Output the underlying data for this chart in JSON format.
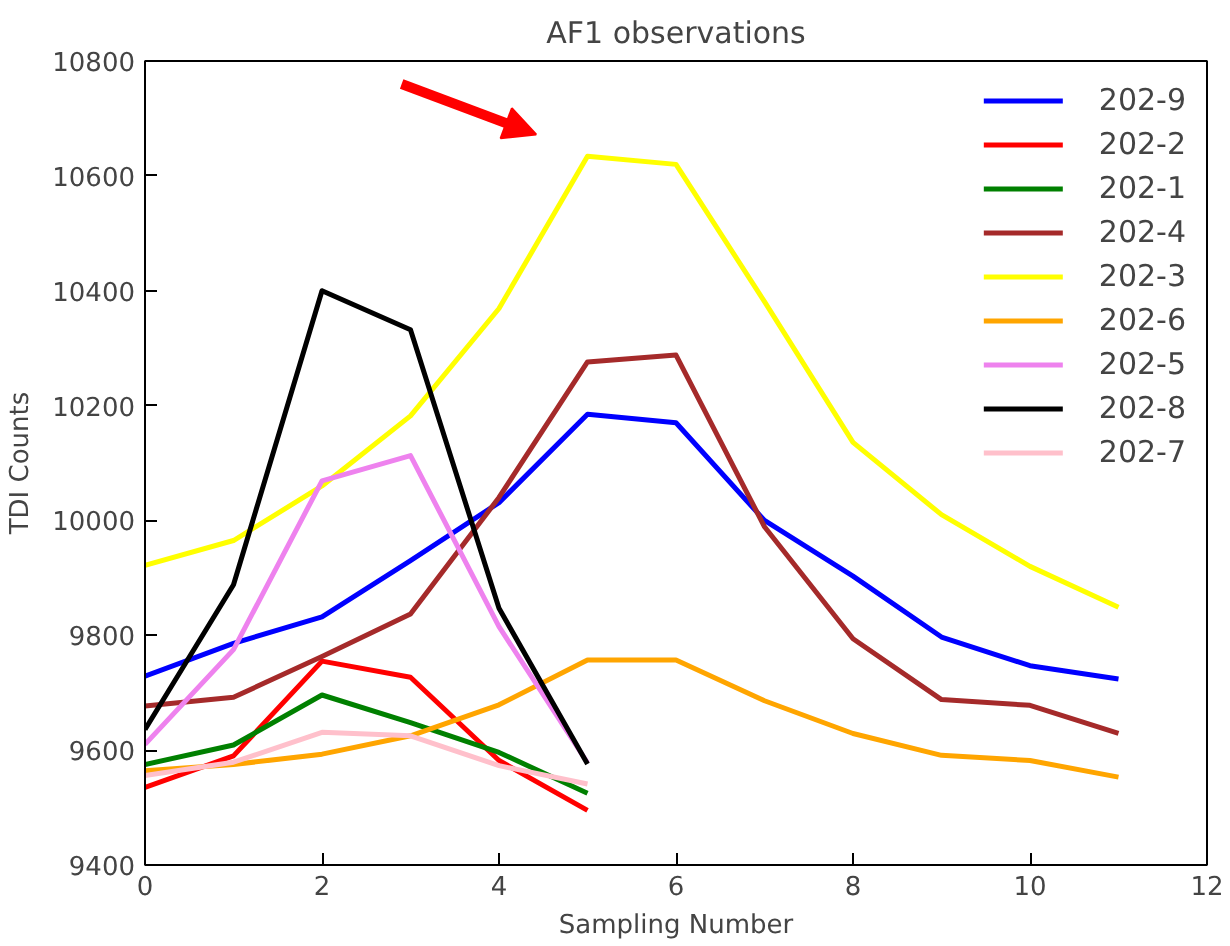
{
  "chart_data": {
    "type": "line",
    "title": "AF1 observations",
    "xlabel": "Sampling Number",
    "ylabel": "TDI Counts",
    "xlim": [
      0,
      12
    ],
    "ylim": [
      9400,
      10800
    ],
    "xticks": [
      0,
      2,
      4,
      6,
      8,
      10,
      12
    ],
    "yticks": [
      9400,
      9600,
      9800,
      10000,
      10200,
      10400,
      10600,
      10800
    ],
    "grid": false,
    "legend": "top right",
    "line_style": "solid",
    "series": [
      {
        "name": "202-9",
        "color": "#0000ff",
        "x": [
          0,
          1,
          2,
          3,
          4,
          5,
          6,
          7,
          8,
          9,
          10,
          11
        ],
        "values": [
          9729,
          9786,
          9832,
          9930,
          10031,
          10185,
          10170,
          10000,
          9903,
          9797,
          9747,
          9724
        ]
      },
      {
        "name": "202-2",
        "color": "#ff0000",
        "x": [
          0,
          1,
          2,
          3,
          4,
          5
        ],
        "values": [
          9535,
          9590,
          9755,
          9727,
          9582,
          9495
        ]
      },
      {
        "name": "202-1",
        "color": "#008000",
        "x": [
          0,
          1,
          2,
          3,
          4,
          5
        ],
        "values": [
          9575,
          9609,
          9696,
          9648,
          9596,
          9525
        ]
      },
      {
        "name": "202-4",
        "color": "#a52a2a",
        "x": [
          0,
          1,
          2,
          3,
          4,
          5,
          6,
          7,
          8,
          9,
          10,
          11
        ],
        "values": [
          9677,
          9692,
          9763,
          9837,
          10040,
          10276,
          10288,
          9989,
          9794,
          9688,
          9678,
          9629
        ]
      },
      {
        "name": "202-3",
        "color": "#ffff00",
        "x": [
          0,
          1,
          2,
          3,
          4,
          5,
          6,
          7,
          8,
          9,
          10,
          11
        ],
        "values": [
          9922,
          9965,
          10060,
          10182,
          10369,
          10634,
          10620,
          10381,
          10136,
          10010,
          9920,
          9849
        ]
      },
      {
        "name": "202-6",
        "color": "#ffa500",
        "x": [
          0,
          1,
          2,
          3,
          4,
          5,
          6,
          7,
          8,
          9,
          10,
          11
        ],
        "values": [
          9564,
          9575,
          9593,
          9625,
          9679,
          9757,
          9757,
          9686,
          9629,
          9591,
          9582,
          9553
        ]
      },
      {
        "name": "202-5",
        "color": "#ee82ee",
        "x": [
          0,
          1,
          2,
          3,
          4,
          5
        ],
        "values": [
          9610,
          9775,
          10069,
          10113,
          9815,
          9578
        ]
      },
      {
        "name": "202-8",
        "color": "#000000",
        "x": [
          0,
          1,
          2,
          3,
          4,
          5
        ],
        "values": [
          9636,
          9888,
          10400,
          10332,
          9847,
          9576
        ]
      },
      {
        "name": "202-7",
        "color": "#ffc0cb",
        "x": [
          0,
          1,
          2,
          3,
          4,
          5
        ],
        "values": [
          9556,
          9579,
          9631,
          9625,
          9573,
          9541
        ]
      }
    ]
  }
}
